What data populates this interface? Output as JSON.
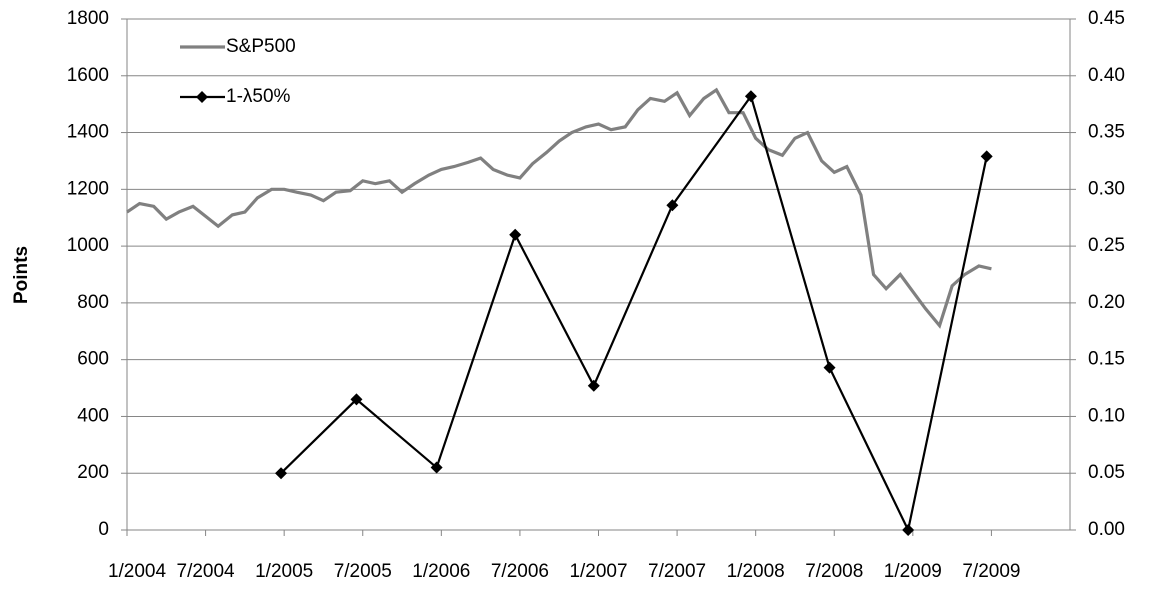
{
  "chart_data": {
    "type": "line",
    "ylabel": "Points",
    "xlim": [
      2004,
      2010
    ],
    "xticks": [
      {
        "value": 2004,
        "label": "1/2004"
      },
      {
        "value": 2004.5,
        "label": "7/2004"
      },
      {
        "value": 2005,
        "label": "1/2005"
      },
      {
        "value": 2005.5,
        "label": "7/2005"
      },
      {
        "value": 2006,
        "label": "1/2006"
      },
      {
        "value": 2006.5,
        "label": "7/2006"
      },
      {
        "value": 2007,
        "label": "1/2007"
      },
      {
        "value": 2007.5,
        "label": "7/2007"
      },
      {
        "value": 2008,
        "label": "1/2008"
      },
      {
        "value": 2008.5,
        "label": "7/2008"
      },
      {
        "value": 2009,
        "label": "1/2009"
      },
      {
        "value": 2009.5,
        "label": "7/2009"
      }
    ],
    "ylim": [
      0,
      1800
    ],
    "yticks": [
      0,
      200,
      400,
      600,
      800,
      1000,
      1200,
      1400,
      1600,
      1800
    ],
    "y2lim": [
      0,
      0.45
    ],
    "y2ticks": [
      {
        "value": 0,
        "label": "0.00"
      },
      {
        "value": 0.05,
        "label": "0.05"
      },
      {
        "value": 0.1,
        "label": "0.10"
      },
      {
        "value": 0.15,
        "label": "0.15"
      },
      {
        "value": 0.2,
        "label": "0.20"
      },
      {
        "value": 0.25,
        "label": "0.25"
      },
      {
        "value": 0.3,
        "label": "0.30"
      },
      {
        "value": 0.35,
        "label": "0.35"
      },
      {
        "value": 0.4,
        "label": "0.40"
      },
      {
        "value": 0.45,
        "label": "0.45"
      }
    ],
    "grid": true,
    "legend": "upper-left",
    "series": [
      {
        "name": "S&P500",
        "color": "#808080",
        "x": [
          2004.0,
          2004.08,
          2004.17,
          2004.25,
          2004.33,
          2004.42,
          2004.5,
          2004.58,
          2004.67,
          2004.75,
          2004.83,
          2004.92,
          2005.0,
          2005.08,
          2005.17,
          2005.25,
          2005.33,
          2005.42,
          2005.5,
          2005.58,
          2005.67,
          2005.75,
          2005.83,
          2005.92,
          2006.0,
          2006.08,
          2006.17,
          2006.25,
          2006.33,
          2006.42,
          2006.5,
          2006.58,
          2006.67,
          2006.75,
          2006.83,
          2006.92,
          2007.0,
          2007.08,
          2007.17,
          2007.25,
          2007.33,
          2007.42,
          2007.5,
          2007.58,
          2007.67,
          2007.75,
          2007.83,
          2007.92,
          2008.0,
          2008.08,
          2008.17,
          2008.25,
          2008.33,
          2008.42,
          2008.5,
          2008.58,
          2008.67,
          2008.75,
          2008.83,
          2008.92,
          2009.0,
          2009.08,
          2009.17,
          2009.25,
          2009.33,
          2009.42,
          2009.5
        ],
        "values": [
          1120,
          1150,
          1140,
          1095,
          1120,
          1140,
          1105,
          1070,
          1110,
          1120,
          1170,
          1200,
          1200,
          1190,
          1180,
          1160,
          1190,
          1195,
          1230,
          1220,
          1230,
          1190,
          1220,
          1250,
          1270,
          1280,
          1295,
          1310,
          1270,
          1250,
          1240,
          1290,
          1330,
          1370,
          1400,
          1420,
          1430,
          1410,
          1420,
          1480,
          1520,
          1510,
          1540,
          1460,
          1520,
          1550,
          1470,
          1470,
          1380,
          1340,
          1320,
          1380,
          1400,
          1300,
          1260,
          1280,
          1180,
          900,
          850,
          900,
          840,
          780,
          720,
          860,
          900,
          930,
          920
        ]
      },
      {
        "name": "1-λ50%",
        "color": "#000000",
        "axis": "y2",
        "marker": "diamond",
        "x": [
          2004.98,
          2005.46,
          2005.97,
          2006.47,
          2006.97,
          2007.47,
          2007.97,
          2008.47,
          2008.97,
          2009.47
        ],
        "values": [
          0.05,
          0.115,
          0.055,
          0.26,
          0.127,
          0.286,
          0.382,
          0.143,
          0.0,
          0.329
        ]
      }
    ]
  }
}
